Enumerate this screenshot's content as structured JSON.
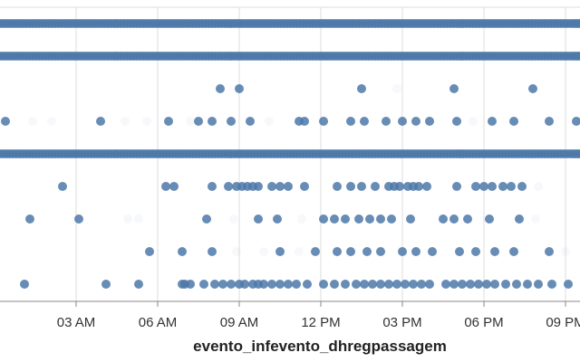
{
  "chart_data": {
    "type": "scatter",
    "xlabel": "evento_infevento_dhregpassagem",
    "x_axis_unit": "hours since midnight",
    "x_range": [
      0,
      21.5
    ],
    "x_ticks": [
      {
        "value": 3,
        "label": "03 AM"
      },
      {
        "value": 6,
        "label": "06 AM"
      },
      {
        "value": 9,
        "label": "09 AM"
      },
      {
        "value": 12,
        "label": "12 PM"
      },
      {
        "value": 15,
        "label": "03 PM"
      },
      {
        "value": 18,
        "label": "06 PM"
      },
      {
        "value": 21,
        "label": "09 PM"
      }
    ],
    "grid": true,
    "colors": {
      "point": "#4c78a8",
      "grid": "#dddddd",
      "axis": "#888888"
    },
    "rows": [
      {
        "dense": true
      },
      {
        "dense": true
      },
      {
        "dense": false,
        "points": [
          {
            "x": 8.3,
            "o": 0.85
          },
          {
            "x": 9.0,
            "o": 0.85
          },
          {
            "x": 13.5,
            "o": 0.85
          },
          {
            "x": 14.8,
            "o": 0.05
          },
          {
            "x": 16.9,
            "o": 0.85
          },
          {
            "x": 19.8,
            "o": 0.85
          }
        ]
      },
      {
        "dense": false,
        "points": [
          {
            "x": 0.4,
            "o": 0.85
          },
          {
            "x": 1.4,
            "o": 0.05
          },
          {
            "x": 2.1,
            "o": 0.05
          },
          {
            "x": 3.9,
            "o": 0.85
          },
          {
            "x": 4.8,
            "o": 0.05
          },
          {
            "x": 5.6,
            "o": 0.05
          },
          {
            "x": 6.4,
            "o": 0.85
          },
          {
            "x": 7.2,
            "o": 0.05
          },
          {
            "x": 7.5,
            "o": 0.85
          },
          {
            "x": 8.0,
            "o": 0.85
          },
          {
            "x": 8.7,
            "o": 0.85
          },
          {
            "x": 9.4,
            "o": 0.85
          },
          {
            "x": 10.1,
            "o": 0.05
          },
          {
            "x": 11.2,
            "o": 0.85
          },
          {
            "x": 11.4,
            "o": 0.85
          },
          {
            "x": 12.1,
            "o": 0.85
          },
          {
            "x": 13.1,
            "o": 0.85
          },
          {
            "x": 13.6,
            "o": 0.85
          },
          {
            "x": 14.4,
            "o": 0.85
          },
          {
            "x": 15.0,
            "o": 0.85
          },
          {
            "x": 15.5,
            "o": 0.85
          },
          {
            "x": 16.0,
            "o": 0.85
          },
          {
            "x": 17.0,
            "o": 0.85
          },
          {
            "x": 17.6,
            "o": 0.05
          },
          {
            "x": 18.3,
            "o": 0.85
          },
          {
            "x": 19.1,
            "o": 0.85
          },
          {
            "x": 20.4,
            "o": 0.85
          },
          {
            "x": 21.4,
            "o": 0.85
          }
        ]
      },
      {
        "dense": true
      },
      {
        "dense": false,
        "points": [
          {
            "x": 2.5,
            "o": 0.85
          },
          {
            "x": 6.3,
            "o": 0.85
          },
          {
            "x": 6.6,
            "o": 0.85
          },
          {
            "x": 8.0,
            "o": 0.85
          },
          {
            "x": 8.6,
            "o": 0.85
          },
          {
            "x": 8.9,
            "o": 0.85
          },
          {
            "x": 9.1,
            "o": 0.85
          },
          {
            "x": 9.3,
            "o": 0.85
          },
          {
            "x": 9.5,
            "o": 0.85
          },
          {
            "x": 9.7,
            "o": 0.85
          },
          {
            "x": 10.2,
            "o": 0.85
          },
          {
            "x": 10.5,
            "o": 0.85
          },
          {
            "x": 10.8,
            "o": 0.85
          },
          {
            "x": 11.4,
            "o": 0.85
          },
          {
            "x": 12.6,
            "o": 0.85
          },
          {
            "x": 13.1,
            "o": 0.85
          },
          {
            "x": 13.5,
            "o": 0.85
          },
          {
            "x": 14.0,
            "o": 0.85
          },
          {
            "x": 14.5,
            "o": 0.85
          },
          {
            "x": 14.7,
            "o": 0.85
          },
          {
            "x": 14.9,
            "o": 0.85
          },
          {
            "x": 15.2,
            "o": 0.85
          },
          {
            "x": 15.4,
            "o": 0.85
          },
          {
            "x": 15.6,
            "o": 0.85
          },
          {
            "x": 15.9,
            "o": 0.85
          },
          {
            "x": 17.0,
            "o": 0.85
          },
          {
            "x": 17.7,
            "o": 0.85
          },
          {
            "x": 18.0,
            "o": 0.85
          },
          {
            "x": 18.3,
            "o": 0.85
          },
          {
            "x": 18.7,
            "o": 0.85
          },
          {
            "x": 19.0,
            "o": 0.85
          },
          {
            "x": 19.4,
            "o": 0.85
          },
          {
            "x": 20.0,
            "o": 0.05
          }
        ]
      },
      {
        "dense": false,
        "points": [
          {
            "x": 1.3,
            "o": 0.85
          },
          {
            "x": 3.1,
            "o": 0.85
          },
          {
            "x": 4.9,
            "o": 0.05
          },
          {
            "x": 5.3,
            "o": 0.05
          },
          {
            "x": 7.8,
            "o": 0.85
          },
          {
            "x": 8.8,
            "o": 0.05
          },
          {
            "x": 9.7,
            "o": 0.85
          },
          {
            "x": 10.4,
            "o": 0.85
          },
          {
            "x": 11.3,
            "o": 0.05
          },
          {
            "x": 12.1,
            "o": 0.85
          },
          {
            "x": 12.5,
            "o": 0.85
          },
          {
            "x": 12.9,
            "o": 0.85
          },
          {
            "x": 13.4,
            "o": 0.85
          },
          {
            "x": 13.8,
            "o": 0.85
          },
          {
            "x": 14.2,
            "o": 0.85
          },
          {
            "x": 14.6,
            "o": 0.85
          },
          {
            "x": 15.3,
            "o": 0.85
          },
          {
            "x": 16.5,
            "o": 0.85
          },
          {
            "x": 16.9,
            "o": 0.85
          },
          {
            "x": 17.4,
            "o": 0.85
          },
          {
            "x": 18.2,
            "o": 0.85
          },
          {
            "x": 19.3,
            "o": 0.85
          },
          {
            "x": 19.9,
            "o": 0.05
          }
        ]
      },
      {
        "dense": false,
        "points": [
          {
            "x": 5.7,
            "o": 0.85
          },
          {
            "x": 6.9,
            "o": 0.85
          },
          {
            "x": 8.0,
            "o": 0.85
          },
          {
            "x": 8.9,
            "o": 0.05
          },
          {
            "x": 9.9,
            "o": 0.05
          },
          {
            "x": 10.5,
            "o": 0.85
          },
          {
            "x": 11.2,
            "o": 0.05
          },
          {
            "x": 11.8,
            "o": 0.85
          },
          {
            "x": 12.6,
            "o": 0.85
          },
          {
            "x": 13.1,
            "o": 0.85
          },
          {
            "x": 13.7,
            "o": 0.85
          },
          {
            "x": 14.2,
            "o": 0.85
          },
          {
            "x": 15.0,
            "o": 0.85
          },
          {
            "x": 15.5,
            "o": 0.85
          },
          {
            "x": 16.1,
            "o": 0.85
          },
          {
            "x": 17.1,
            "o": 0.85
          },
          {
            "x": 17.7,
            "o": 0.85
          },
          {
            "x": 18.4,
            "o": 0.85
          },
          {
            "x": 19.1,
            "o": 0.85
          },
          {
            "x": 20.4,
            "o": 0.85
          },
          {
            "x": 21.0,
            "o": 0.05
          }
        ]
      },
      {
        "dense": false,
        "points": [
          {
            "x": 1.1,
            "o": 0.85
          },
          {
            "x": 4.1,
            "o": 0.85
          },
          {
            "x": 5.3,
            "o": 0.85
          },
          {
            "x": 6.9,
            "o": 0.85
          },
          {
            "x": 7.0,
            "o": 0.85
          },
          {
            "x": 7.2,
            "o": 0.85
          },
          {
            "x": 7.7,
            "o": 0.85
          },
          {
            "x": 8.1,
            "o": 0.85
          },
          {
            "x": 8.4,
            "o": 0.85
          },
          {
            "x": 8.7,
            "o": 0.85
          },
          {
            "x": 9.0,
            "o": 0.85
          },
          {
            "x": 9.2,
            "o": 0.85
          },
          {
            "x": 9.5,
            "o": 0.85
          },
          {
            "x": 9.7,
            "o": 0.85
          },
          {
            "x": 9.9,
            "o": 0.85
          },
          {
            "x": 10.2,
            "o": 0.85
          },
          {
            "x": 10.5,
            "o": 0.85
          },
          {
            "x": 10.8,
            "o": 0.85
          },
          {
            "x": 11.1,
            "o": 0.85
          },
          {
            "x": 11.5,
            "o": 0.85
          },
          {
            "x": 12.1,
            "o": 0.85
          },
          {
            "x": 12.5,
            "o": 0.85
          },
          {
            "x": 12.9,
            "o": 0.85
          },
          {
            "x": 13.3,
            "o": 0.85
          },
          {
            "x": 13.6,
            "o": 0.85
          },
          {
            "x": 13.9,
            "o": 0.85
          },
          {
            "x": 14.2,
            "o": 0.85
          },
          {
            "x": 14.5,
            "o": 0.85
          },
          {
            "x": 14.8,
            "o": 0.85
          },
          {
            "x": 15.1,
            "o": 0.85
          },
          {
            "x": 15.4,
            "o": 0.85
          },
          {
            "x": 15.7,
            "o": 0.85
          },
          {
            "x": 16.0,
            "o": 0.85
          },
          {
            "x": 16.6,
            "o": 0.85
          },
          {
            "x": 16.9,
            "o": 0.85
          },
          {
            "x": 17.2,
            "o": 0.85
          },
          {
            "x": 17.5,
            "o": 0.85
          },
          {
            "x": 17.8,
            "o": 0.85
          },
          {
            "x": 18.1,
            "o": 0.85
          },
          {
            "x": 18.4,
            "o": 0.85
          },
          {
            "x": 18.8,
            "o": 0.85
          },
          {
            "x": 19.2,
            "o": 0.85
          },
          {
            "x": 19.6,
            "o": 0.85
          },
          {
            "x": 20.0,
            "o": 0.85
          },
          {
            "x": 20.5,
            "o": 0.85
          },
          {
            "x": 21.1,
            "o": 0.85
          }
        ]
      }
    ]
  }
}
